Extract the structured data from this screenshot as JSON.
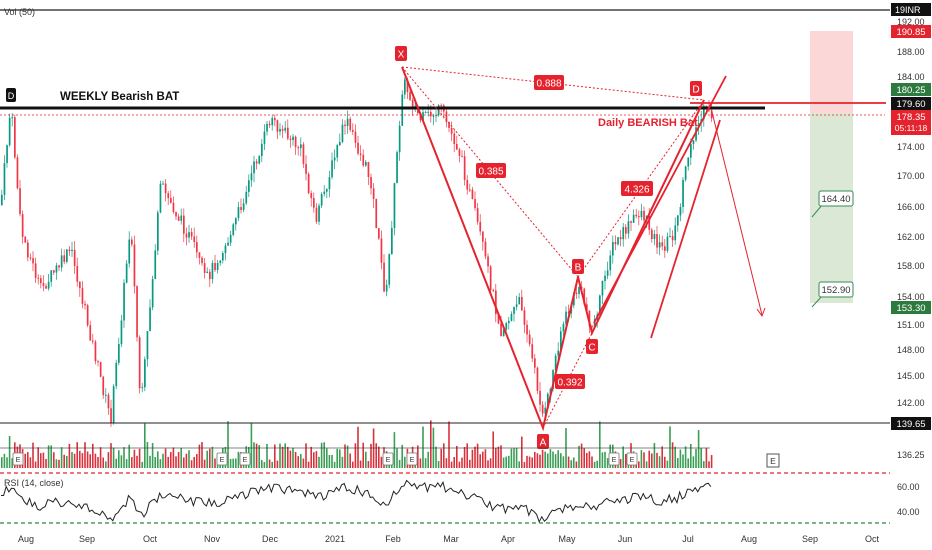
{
  "header": {
    "indicator_label": "Vol (50)",
    "currency": "INR",
    "top_value": "19"
  },
  "annotations": {
    "weekly_label": "WEEKLY Bearish BAT",
    "daily_label": "Daily BEARISH Bat",
    "ratio_xa_xd": "0.888",
    "ratio_ab": "0.385",
    "ratio_bc": "0.392",
    "ratio_cd": "4.326",
    "point_x": "X",
    "point_a": "A",
    "point_b": "B",
    "point_c": "C",
    "point_d": "D",
    "target1": "164.40",
    "target2": "152.90",
    "marker_d_left": "D"
  },
  "price_tags": {
    "tp_zone_top": "190.85",
    "upper_zone": "180.25",
    "pattern_d": "179.60",
    "last_price": "178.35",
    "countdown": "05:11:18",
    "stop_target": "153.30",
    "support": "139.65"
  },
  "rsi_pane": {
    "label": "RSI (14, close)",
    "ticks": [
      "60.00",
      "40.00"
    ]
  },
  "event_marker": "E",
  "chart_data": {
    "type": "candlestick",
    "y_axis_ticks": [
      "192.00",
      "188.00",
      "184.00",
      "174.00",
      "170.00",
      "166.00",
      "162.00",
      "158.00",
      "154.00",
      "151.00",
      "148.00",
      "145.00",
      "142.00",
      "136.25"
    ],
    "x_axis_labels": [
      "Aug",
      "Sep",
      "Oct",
      "Nov",
      "Dec",
      "2021",
      "Feb",
      "Mar",
      "Apr",
      "May",
      "Jun",
      "Jul",
      "Aug",
      "Sep",
      "Oct"
    ],
    "ylim": [
      134,
      194
    ],
    "harmonic_points": [
      {
        "name": "X",
        "date_index": 0.41,
        "price": 186.5
      },
      {
        "name": "A",
        "date_index": 0.57,
        "price": 139.65
      },
      {
        "name": "B",
        "date_index": 0.62,
        "price": 157.2
      },
      {
        "name": "C",
        "date_index": 0.64,
        "price": 150.1
      },
      {
        "name": "D",
        "date_index": 0.75,
        "price": 179.6
      }
    ],
    "colors": {
      "up": "#089981",
      "down": "#f23645",
      "pattern": "#e5232e",
      "target_zone": "#dfeadb",
      "stop_zone": "#fcd7d8",
      "volume_up": "#3a9e55",
      "volume_down": "#d9323c"
    }
  }
}
